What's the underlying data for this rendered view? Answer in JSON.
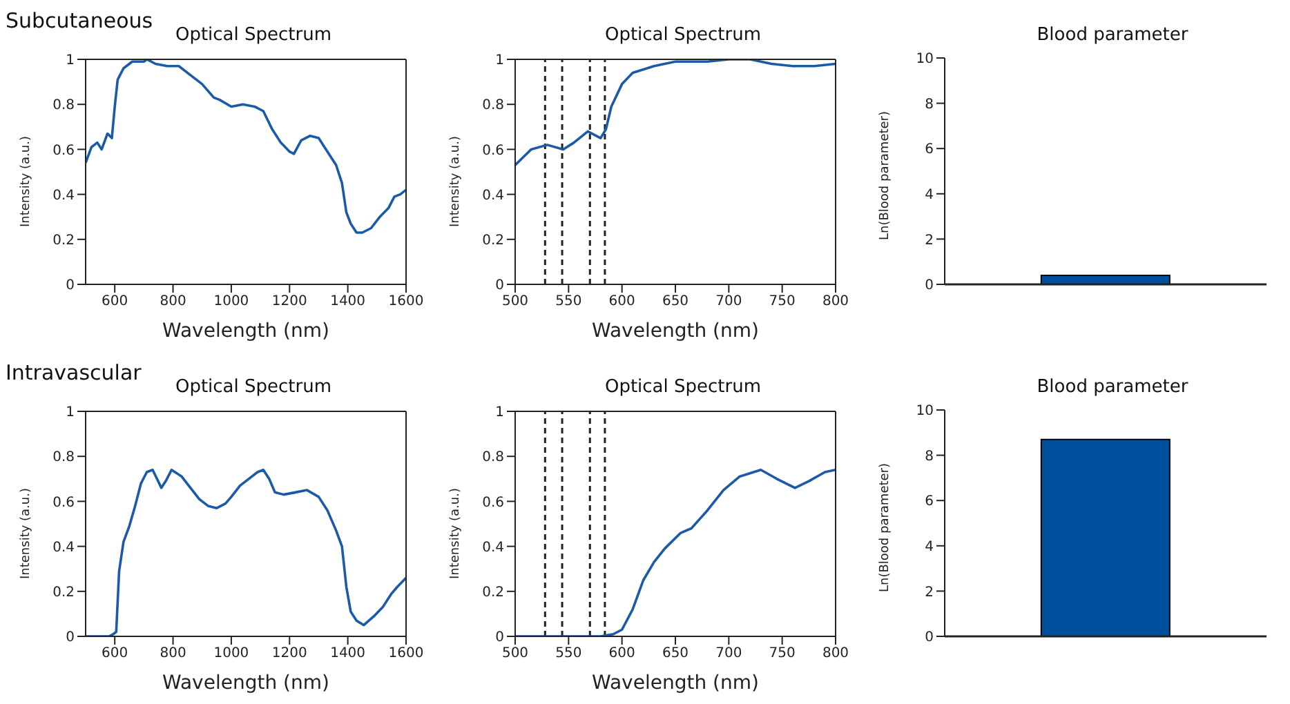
{
  "chart_data": [
    {
      "type": "line",
      "title": "Optical Spectrum",
      "xlabel": "Wavelength (nm)",
      "ylabel": "Intensity (a.u.)",
      "annotations": [
        "Subcutaneous"
      ],
      "xlim": [
        500,
        1600
      ],
      "xticks": [
        600,
        800,
        1000,
        1200,
        1400,
        1600
      ],
      "ylim": [
        0,
        1
      ],
      "yticks": [
        0,
        0.2,
        0.4,
        0.6,
        0.8,
        1
      ],
      "color": "#1a5aa8",
      "x": [
        500,
        520,
        540,
        555,
        575,
        590,
        600,
        610,
        630,
        660,
        700,
        710,
        740,
        780,
        820,
        850,
        880,
        900,
        920,
        940,
        960,
        1000,
        1040,
        1080,
        1110,
        1140,
        1170,
        1200,
        1215,
        1240,
        1270,
        1300,
        1330,
        1360,
        1380,
        1395,
        1410,
        1430,
        1450,
        1480,
        1510,
        1540,
        1560,
        1580,
        1600
      ],
      "values": [
        0.54,
        0.61,
        0.63,
        0.6,
        0.67,
        0.65,
        0.79,
        0.91,
        0.96,
        0.99,
        0.99,
        1.0,
        0.98,
        0.97,
        0.97,
        0.94,
        0.91,
        0.89,
        0.86,
        0.83,
        0.82,
        0.79,
        0.8,
        0.79,
        0.77,
        0.69,
        0.63,
        0.59,
        0.58,
        0.64,
        0.66,
        0.65,
        0.59,
        0.53,
        0.45,
        0.32,
        0.27,
        0.23,
        0.23,
        0.25,
        0.3,
        0.34,
        0.39,
        0.4,
        0.42
      ]
    },
    {
      "type": "line",
      "title": "Optical Spectrum",
      "xlabel": "Wavelength (nm)",
      "ylabel": "Intensity (a.u.)",
      "xlim": [
        500,
        800
      ],
      "xticks": [
        500,
        550,
        600,
        650,
        700,
        750,
        800
      ],
      "ylim": [
        0,
        1
      ],
      "yticks": [
        0,
        0.2,
        0.4,
        0.6,
        0.8,
        1
      ],
      "color": "#1a5aa8",
      "x": [
        500,
        515,
        530,
        545,
        555,
        568,
        580,
        585,
        590,
        600,
        610,
        630,
        650,
        680,
        700,
        720,
        740,
        760,
        780,
        800
      ],
      "values": [
        0.53,
        0.6,
        0.62,
        0.6,
        0.63,
        0.68,
        0.65,
        0.69,
        0.79,
        0.89,
        0.94,
        0.97,
        0.99,
        0.99,
        1.0,
        1.0,
        0.98,
        0.97,
        0.97,
        0.98
      ],
      "ref_lines": [
        {
          "axis": "x",
          "value": 528,
          "color": "#222222",
          "line_style": "dashed"
        },
        {
          "axis": "x",
          "value": 544,
          "color": "#222222",
          "line_style": "dashed"
        },
        {
          "axis": "x",
          "value": 570,
          "color": "#222222",
          "line_style": "dashed"
        },
        {
          "axis": "x",
          "value": 584,
          "color": "#222222",
          "line_style": "dashed"
        }
      ]
    },
    {
      "type": "bar",
      "title": "Blood parameter",
      "ylabel": "Ln(Blood parameter)",
      "categories": [
        null
      ],
      "values": [
        0.4
      ],
      "color": "#00509e",
      "ylim": [
        0,
        10
      ],
      "yticks": [
        0,
        2,
        4,
        6,
        8,
        10
      ],
      "tick_labels": "y"
    },
    {
      "type": "line",
      "title": "Optical Spectrum",
      "xlabel": "Wavelength (nm)",
      "ylabel": "Intensity (a.u.)",
      "annotations": [
        "Intravascular"
      ],
      "xlim": [
        500,
        1600
      ],
      "xticks": [
        600,
        800,
        1000,
        1200,
        1400,
        1600
      ],
      "ylim": [
        0,
        1
      ],
      "yticks": [
        0,
        0.2,
        0.4,
        0.6,
        0.8,
        1
      ],
      "color": "#1a5aa8",
      "x": [
        500,
        580,
        595,
        605,
        615,
        630,
        650,
        670,
        690,
        710,
        730,
        745,
        760,
        775,
        795,
        830,
        860,
        890,
        920,
        950,
        980,
        1000,
        1030,
        1060,
        1090,
        1110,
        1130,
        1150,
        1180,
        1220,
        1260,
        1300,
        1330,
        1360,
        1380,
        1395,
        1410,
        1430,
        1455,
        1490,
        1520,
        1550,
        1570,
        1600
      ],
      "values": [
        0,
        0,
        0.01,
        0.02,
        0.29,
        0.42,
        0.49,
        0.58,
        0.68,
        0.73,
        0.74,
        0.7,
        0.66,
        0.69,
        0.74,
        0.71,
        0.66,
        0.61,
        0.58,
        0.57,
        0.59,
        0.62,
        0.67,
        0.7,
        0.73,
        0.74,
        0.7,
        0.64,
        0.63,
        0.64,
        0.65,
        0.62,
        0.56,
        0.47,
        0.4,
        0.22,
        0.11,
        0.07,
        0.05,
        0.09,
        0.13,
        0.19,
        0.22,
        0.26
      ]
    },
    {
      "type": "line",
      "title": "Optical Spectrum",
      "xlabel": "Wavelength (nm)",
      "ylabel": "Intensity (a.u.)",
      "xlim": [
        500,
        800
      ],
      "xticks": [
        500,
        550,
        600,
        650,
        700,
        750,
        800
      ],
      "ylim": [
        0,
        1
      ],
      "yticks": [
        0,
        0.2,
        0.4,
        0.6,
        0.8,
        1
      ],
      "color": "#1a5aa8",
      "x": [
        500,
        580,
        592,
        600,
        610,
        620,
        630,
        640,
        655,
        665,
        680,
        695,
        710,
        730,
        745,
        762,
        775,
        790,
        800
      ],
      "values": [
        0,
        0,
        0.01,
        0.03,
        0.12,
        0.25,
        0.33,
        0.39,
        0.46,
        0.48,
        0.56,
        0.65,
        0.71,
        0.74,
        0.7,
        0.66,
        0.69,
        0.73,
        0.74
      ],
      "ref_lines": [
        {
          "axis": "x",
          "value": 528,
          "color": "#222222",
          "line_style": "dashed"
        },
        {
          "axis": "x",
          "value": 544,
          "color": "#222222",
          "line_style": "dashed"
        },
        {
          "axis": "x",
          "value": 570,
          "color": "#222222",
          "line_style": "dashed"
        },
        {
          "axis": "x",
          "value": 584,
          "color": "#222222",
          "line_style": "dashed"
        }
      ]
    },
    {
      "type": "bar",
      "title": "Blood parameter",
      "ylabel": "Ln(Blood parameter)",
      "categories": [
        null
      ],
      "values": [
        8.7
      ],
      "color": "#00509e",
      "ylim": [
        0,
        10
      ],
      "yticks": [
        0,
        2,
        4,
        6,
        8,
        10
      ],
      "tick_labels": "y"
    }
  ]
}
